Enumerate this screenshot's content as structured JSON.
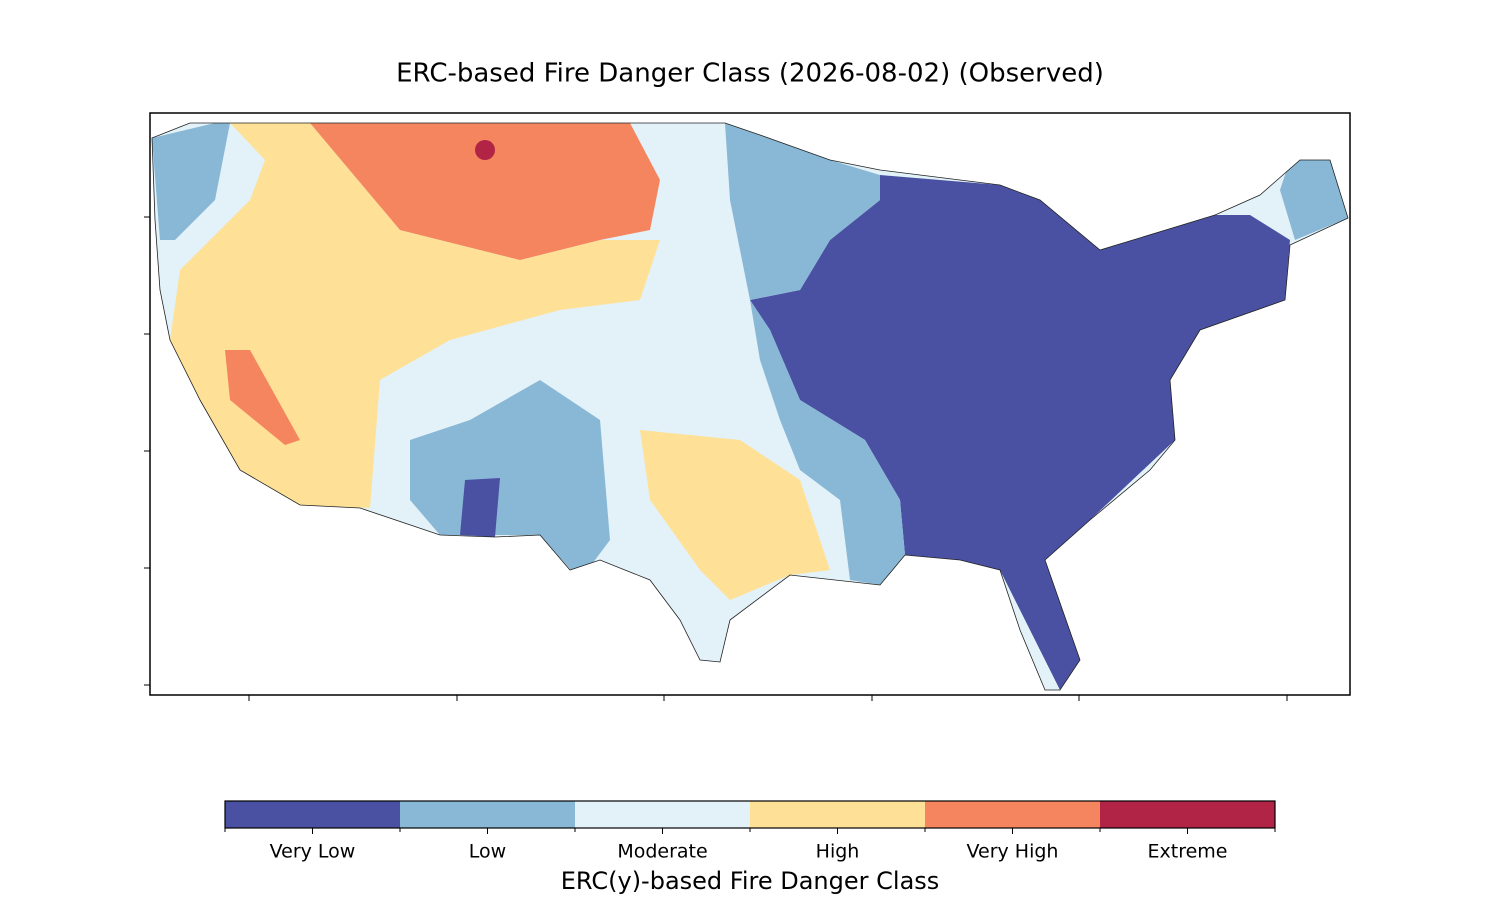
{
  "title": "ERC-based Fire Danger Class (2026-08-02) (Observed)",
  "colorbar": {
    "label": "ERC(y)-based Fire Danger Class",
    "classes": [
      {
        "name": "Very Low",
        "color": "#4a51a3"
      },
      {
        "name": "Low",
        "color": "#89b7d6"
      },
      {
        "name": "Moderate",
        "color": "#e2f2f8"
      },
      {
        "name": "High",
        "color": "#fee197"
      },
      {
        "name": "Very High",
        "color": "#f4855f"
      },
      {
        "name": "Extreme",
        "color": "#b12445"
      }
    ]
  }
}
